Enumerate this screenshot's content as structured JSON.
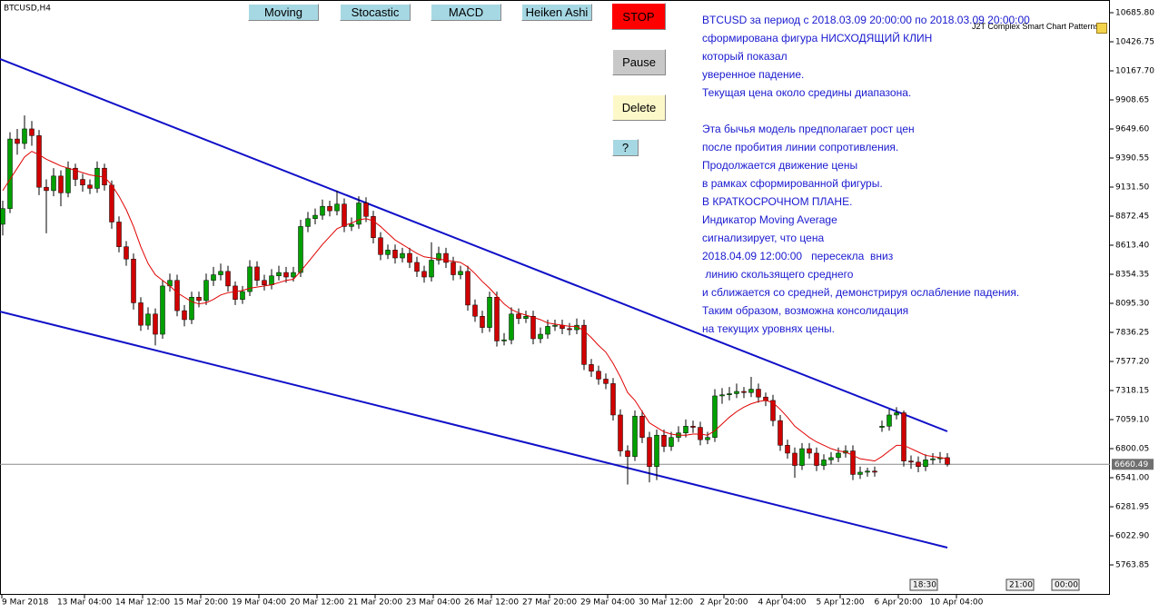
{
  "window": {
    "title": "BTCUSD,H4"
  },
  "buttons": [
    "Moving",
    "Stocastic",
    "MACD",
    "Heiken Ashi",
    "STOP",
    "Pause",
    "Delete",
    "?"
  ],
  "indicator_name": "J2T Complex Smart Chart Patterns",
  "analysis": {
    "paragraphs": [
      [
        "BTCUSD за период с 2018.03.09 20:00:00 по 2018.03.09 20:00:00",
        "сформирована фигура НИСХОДЯЩИЙ КЛИН",
        "который показал",
        "уверенное падение.",
        "Текущая цена около средины диапазона."
      ],
      [
        "Эта бычья модель предполагает рост цен",
        "после пробития линии сопротивления.",
        "Продолжается движение цены",
        "в рамках сформированной фигуры.",
        "В КРАТКОСРОЧНОМ ПЛАНЕ.",
        "Индикатор Moving Average",
        "сигнализирует, что цена",
        "2018.04.09 12:00:00   пересекла  вниз",
        " линию скользящего среднего",
        "и сближается со средней, демонстрируя ослабление падения.",
        "Таким образом, возможна консолидация",
        "на текущих уровнях цены."
      ]
    ]
  },
  "chart_data": {
    "type": "candlestick",
    "ylim": [
      5497,
      10799
    ],
    "yticks": [
      {
        "value": 10685.8,
        "label": "10685.80"
      },
      {
        "value": 10426.75,
        "label": "10426.75"
      },
      {
        "value": 10167.7,
        "label": "10167.70"
      },
      {
        "value": 9908.65,
        "label": "9908.65"
      },
      {
        "value": 9649.6,
        "label": "9649.60"
      },
      {
        "value": 9390.55,
        "label": "9390.55"
      },
      {
        "value": 9131.5,
        "label": "9131.50"
      },
      {
        "value": 8872.45,
        "label": "8872.45"
      },
      {
        "value": 8613.4,
        "label": "8613.40"
      },
      {
        "value": 8354.35,
        "label": "8354.35"
      },
      {
        "value": 8095.3,
        "label": "8095.30"
      },
      {
        "value": 7836.25,
        "label": "7836.25"
      },
      {
        "value": 7577.2,
        "label": "7577.20"
      },
      {
        "value": 7318.15,
        "label": "7318.15"
      },
      {
        "value": 7059.1,
        "label": "7059.10"
      },
      {
        "value": 6800.05,
        "label": "6800.05"
      },
      {
        "value": 6541.0,
        "label": "6541.00"
      },
      {
        "value": 6281.95,
        "label": "6281.95"
      },
      {
        "value": 6022.9,
        "label": "6022.90"
      },
      {
        "value": 5763.85,
        "label": "5763.85"
      }
    ],
    "x_labels": [
      "9 Mar 2018",
      "13 Mar 04:00",
      "14 Mar 12:00",
      "15 Mar 20:00",
      "19 Mar 04:00",
      "20 Mar 12:00",
      "21 Mar 20:00",
      "23 Mar 04:00",
      "26 Mar 12:00",
      "27 Mar 20:00",
      "29 Mar 04:00",
      "30 Mar 12:00",
      "2 Apr 20:00",
      "4 Apr 04:00",
      "5 Apr 12:00",
      "6 Apr 20:00",
      "10 Apr 04:00"
    ],
    "current_price": 6660.49,
    "up_color": "#00a000",
    "down_color": "#d00000",
    "trendlines": [
      {
        "from": 10273,
        "to": 6954,
        "color": "#1010c8"
      },
      {
        "from": 8022,
        "to": 5918,
        "color": "#1010c8"
      }
    ],
    "moving_average": {
      "color": "#e00000",
      "values": [
        9100,
        9200,
        9300,
        9400,
        9450,
        9420,
        9380,
        9350,
        9320,
        9300,
        9280,
        9260,
        9240,
        9230,
        9220,
        9150,
        9050,
        8930,
        8780,
        8600,
        8450,
        8350,
        8300,
        8250,
        8190,
        8150,
        8110,
        8090,
        8100,
        8130,
        8170,
        8190,
        8200,
        8210,
        8230,
        8240,
        8250,
        8260,
        8280,
        8300,
        8310,
        8380,
        8460,
        8540,
        8620,
        8690,
        8760,
        8790,
        8810,
        8840,
        8850,
        8830,
        8780,
        8720,
        8660,
        8620,
        8580,
        8540,
        8510,
        8500,
        8490,
        8480,
        8470,
        8460,
        8420,
        8360,
        8290,
        8230,
        8160,
        8090,
        8040,
        8010,
        7990,
        7970,
        7950,
        7920,
        7910,
        7900,
        7890,
        7890,
        7850,
        7790,
        7720,
        7660,
        7560,
        7440,
        7300,
        7230,
        7130,
        7030,
        6990,
        6950,
        6930,
        6920,
        6920,
        6930,
        6930,
        6920,
        6960,
        7020,
        7080,
        7130,
        7170,
        7200,
        7220,
        7230,
        7210,
        7150,
        7080,
        7000,
        6950,
        6900,
        6860,
        6830,
        6800,
        6780,
        6770,
        6740,
        6710,
        6700,
        6690,
        6730,
        6780,
        6830,
        6830,
        6800,
        6770,
        6740,
        6730,
        6720,
        6710
      ]
    },
    "candles": [
      [
        8800,
        9010,
        8700,
        8940
      ],
      [
        8940,
        9620,
        8900,
        9560
      ],
      [
        9560,
        9650,
        9420,
        9520
      ],
      [
        9520,
        9770,
        9470,
        9650
      ],
      [
        9650,
        9720,
        9500,
        9590
      ],
      [
        9590,
        9640,
        9060,
        9130
      ],
      [
        9130,
        9200,
        8720,
        9100
      ],
      [
        9100,
        9300,
        9050,
        9230
      ],
      [
        9230,
        9280,
        8960,
        9080
      ],
      [
        9080,
        9360,
        9040,
        9300
      ],
      [
        9300,
        9340,
        9140,
        9200
      ],
      [
        9200,
        9250,
        9090,
        9150
      ],
      [
        9150,
        9200,
        9070,
        9120
      ],
      [
        9120,
        9360,
        9080,
        9300
      ],
      [
        9300,
        9340,
        9100,
        9150
      ],
      [
        9150,
        9190,
        8760,
        8820
      ],
      [
        8820,
        8870,
        8550,
        8600
      ],
      [
        8600,
        8650,
        8430,
        8490
      ],
      [
        8490,
        8540,
        8040,
        8100
      ],
      [
        8100,
        8150,
        7850,
        7900
      ],
      [
        7900,
        8060,
        7860,
        8000
      ],
      [
        8000,
        8050,
        7720,
        7820
      ],
      [
        7820,
        8300,
        7780,
        8250
      ],
      [
        8250,
        8360,
        8200,
        8300
      ],
      [
        8300,
        8350,
        7980,
        8030
      ],
      [
        8030,
        8080,
        7890,
        7950
      ],
      [
        7950,
        8200,
        7910,
        8150
      ],
      [
        8150,
        8200,
        8060,
        8120
      ],
      [
        8120,
        8360,
        8080,
        8300
      ],
      [
        8300,
        8420,
        8250,
        8350
      ],
      [
        8350,
        8450,
        8300,
        8380
      ],
      [
        8380,
        8430,
        8200,
        8250
      ],
      [
        8250,
        8290,
        8080,
        8130
      ],
      [
        8130,
        8250,
        8090,
        8200
      ],
      [
        8200,
        8480,
        8160,
        8420
      ],
      [
        8420,
        8470,
        8250,
        8300
      ],
      [
        8300,
        8350,
        8210,
        8260
      ],
      [
        8260,
        8400,
        8220,
        8340
      ],
      [
        8340,
        8430,
        8300,
        8370
      ],
      [
        8370,
        8420,
        8280,
        8330
      ],
      [
        8330,
        8420,
        8290,
        8370
      ],
      [
        8370,
        8840,
        8330,
        8780
      ],
      [
        8780,
        8910,
        8730,
        8850
      ],
      [
        8850,
        8940,
        8800,
        8880
      ],
      [
        8880,
        9020,
        8840,
        8960
      ],
      [
        8960,
        9010,
        8870,
        8920
      ],
      [
        8920,
        9100,
        8880,
        8980
      ],
      [
        8980,
        9030,
        8730,
        8780
      ],
      [
        8780,
        8860,
        8740,
        8800
      ],
      [
        8800,
        9050,
        8760,
        8990
      ],
      [
        8990,
        9040,
        8820,
        8870
      ],
      [
        8870,
        8920,
        8630,
        8680
      ],
      [
        8680,
        8730,
        8480,
        8530
      ],
      [
        8530,
        8620,
        8490,
        8570
      ],
      [
        8570,
        8620,
        8450,
        8500
      ],
      [
        8500,
        8590,
        8460,
        8540
      ],
      [
        8540,
        8590,
        8410,
        8460
      ],
      [
        8460,
        8510,
        8330,
        8380
      ],
      [
        8380,
        8430,
        8280,
        8330
      ],
      [
        8330,
        8640,
        8290,
        8480
      ],
      [
        8480,
        8600,
        8440,
        8540
      ],
      [
        8540,
        8590,
        8410,
        8460
      ],
      [
        8460,
        8510,
        8300,
        8350
      ],
      [
        8350,
        8430,
        8310,
        8380
      ],
      [
        8380,
        8430,
        8030,
        8080
      ],
      [
        8080,
        8130,
        7930,
        7980
      ],
      [
        7980,
        8030,
        7830,
        7880
      ],
      [
        7880,
        8200,
        7840,
        8150
      ],
      [
        8150,
        8200,
        7710,
        7760
      ],
      [
        7760,
        7830,
        7720,
        7770
      ],
      [
        7770,
        8060,
        7730,
        8000
      ],
      [
        8000,
        8050,
        7910,
        7960
      ],
      [
        7960,
        8030,
        7920,
        7980
      ],
      [
        7980,
        8030,
        7730,
        7780
      ],
      [
        7780,
        7880,
        7740,
        7820
      ],
      [
        7820,
        7950,
        7780,
        7890
      ],
      [
        7890,
        7950,
        7850,
        7900
      ],
      [
        7900,
        7950,
        7820,
        7870
      ],
      [
        7870,
        7920,
        7810,
        7860
      ],
      [
        7860,
        7960,
        7820,
        7900
      ],
      [
        7900,
        7950,
        7500,
        7550
      ],
      [
        7550,
        7600,
        7440,
        7490
      ],
      [
        7490,
        7540,
        7370,
        7420
      ],
      [
        7420,
        7470,
        7330,
        7380
      ],
      [
        7380,
        7430,
        7050,
        7100
      ],
      [
        7100,
        7150,
        6730,
        6780
      ],
      [
        6780,
        6830,
        6480,
        6730
      ],
      [
        6730,
        7140,
        6690,
        7090
      ],
      [
        7090,
        7140,
        6850,
        6900
      ],
      [
        6900,
        6950,
        6500,
        6640
      ],
      [
        6640,
        6970,
        6520,
        6920
      ],
      [
        6920,
        6970,
        6770,
        6820
      ],
      [
        6820,
        6950,
        6780,
        6900
      ],
      [
        6900,
        7000,
        6860,
        6940
      ],
      [
        6940,
        7060,
        6900,
        7000
      ],
      [
        7000,
        7050,
        6940,
        6990
      ],
      [
        6990,
        7040,
        6830,
        6880
      ],
      [
        6880,
        6950,
        6840,
        6900
      ],
      [
        6900,
        7330,
        6860,
        7270
      ],
      [
        7270,
        7340,
        7200,
        7280
      ],
      [
        7280,
        7350,
        7230,
        7290
      ],
      [
        7290,
        7380,
        7250,
        7310
      ],
      [
        7310,
        7350,
        7250,
        7300
      ],
      [
        7300,
        7440,
        7260,
        7330
      ],
      [
        7330,
        7380,
        7210,
        7260
      ],
      [
        7260,
        7300,
        7180,
        7230
      ],
      [
        7230,
        7280,
        7000,
        7050
      ],
      [
        7050,
        7100,
        6780,
        6830
      ],
      [
        6830,
        6880,
        6710,
        6760
      ],
      [
        6760,
        6810,
        6540,
        6650
      ],
      [
        6650,
        6850,
        6610,
        6800
      ],
      [
        6800,
        6850,
        6710,
        6760
      ],
      [
        6760,
        6810,
        6600,
        6650
      ],
      [
        6650,
        6750,
        6610,
        6700
      ],
      [
        6700,
        6770,
        6660,
        6720
      ],
      [
        6720,
        6810,
        6680,
        6760
      ],
      [
        6760,
        6830,
        6720,
        6780
      ],
      [
        6780,
        6830,
        6520,
        6570
      ],
      [
        6570,
        6640,
        6530,
        6590
      ],
      [
        6590,
        6630,
        6550,
        6600
      ],
      [
        6600,
        6640,
        6550,
        6590
      ],
      [
        6990,
        7050,
        6950,
        7000
      ],
      [
        7000,
        7150,
        6960,
        7100
      ],
      [
        7100,
        7170,
        7060,
        7120
      ],
      [
        7120,
        7140,
        6640,
        6690
      ],
      [
        6690,
        6740,
        6620,
        6680
      ],
      [
        6680,
        6730,
        6590,
        6640
      ],
      [
        6640,
        6750,
        6600,
        6700
      ],
      [
        6700,
        6760,
        6660,
        6710
      ],
      [
        6710,
        6770,
        6670,
        6720
      ],
      [
        6720,
        6760,
        6640,
        6660
      ]
    ],
    "time_controls": [
      "18:30",
      "21:00",
      "00:00"
    ]
  }
}
